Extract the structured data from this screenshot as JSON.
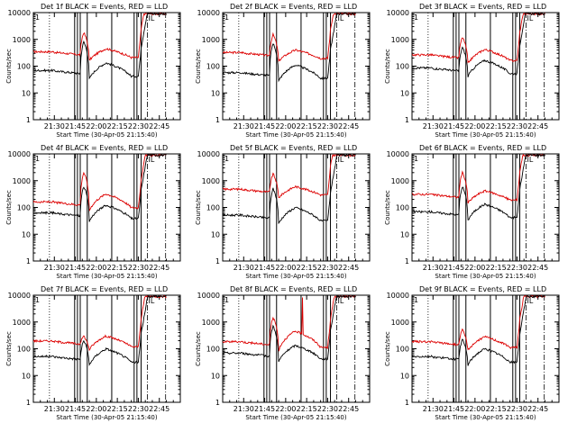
{
  "chart_data": {
    "type": "line",
    "layout": "3x3 grid of line panels",
    "x_tick_labels": [
      "21:30",
      "21:45",
      "22:00",
      "22:15",
      "22:30",
      "22:45"
    ],
    "x_tick_minutes": [
      15,
      30,
      45,
      60,
      75,
      90
    ],
    "xlim_minutes": [
      0,
      105
    ],
    "xlabel": "Start Time (30-Apr-05 21:15:40)",
    "ylabel": "Counts/sec",
    "yscale": "log",
    "ylim": [
      1,
      10000
    ],
    "y_tick_labels": [
      "1",
      "10",
      "100",
      "1000",
      "10000"
    ],
    "y_tick_values": [
      1,
      10,
      100,
      1000,
      10000
    ],
    "series_colors": {
      "events": "#000000",
      "lld": "#dd0000"
    },
    "legend_text": "BLACK = Events, RED = LLD",
    "corner_mark": "1",
    "marker_text": "IL",
    "vertical_lines": {
      "dotted_minutes": [
        11.5
      ],
      "solid_minutes": [
        29.5,
        31.5,
        33.5,
        38.5,
        56.0,
        72.0,
        74.0,
        77.0
      ],
      "dashdot_minutes": [
        81.5,
        94.5
      ]
    },
    "panels": [
      {
        "title": "Det 1f BLACK = Events, RED = LLD",
        "events_base": 60,
        "lld_base": 300,
        "events_spike": 800,
        "lld_spike": 1800,
        "lld_hump": 450,
        "extra_spike": false
      },
      {
        "title": "Det 2f BLACK = Events, RED = LLD",
        "events_base": 50,
        "lld_base": 280,
        "events_spike": 700,
        "lld_spike": 1500,
        "lld_hump": 400,
        "extra_spike": false
      },
      {
        "title": "Det 3f BLACK = Events, RED = LLD",
        "events_base": 75,
        "lld_base": 230,
        "events_spike": 500,
        "lld_spike": 1200,
        "lld_hump": 420,
        "extra_spike": false
      },
      {
        "title": "Det 4f BLACK = Events, RED = LLD",
        "events_base": 55,
        "lld_base": 140,
        "events_spike": 600,
        "lld_spike": 2000,
        "lld_hump": 320,
        "extra_spike": false
      },
      {
        "title": "Det 5f BLACK = Events, RED = LLD",
        "events_base": 45,
        "lld_base": 420,
        "events_spike": 500,
        "lld_spike": 1800,
        "lld_hump": 600,
        "extra_spike": false
      },
      {
        "title": "Det 6f BLACK = Events, RED = LLD",
        "events_base": 60,
        "lld_base": 270,
        "events_spike": 600,
        "lld_spike": 2000,
        "lld_hump": 420,
        "extra_spike": false
      },
      {
        "title": "Det 7f BLACK = Events, RED = LLD",
        "events_base": 45,
        "lld_base": 170,
        "events_spike": 200,
        "lld_spike": 300,
        "lld_hump": 300,
        "extra_spike": false
      },
      {
        "title": "Det 8f BLACK = Events, RED = LLD",
        "events_base": 60,
        "lld_base": 160,
        "events_spike": 700,
        "lld_spike": 1500,
        "lld_hump": 450,
        "extra_spike": true
      },
      {
        "title": "Det 9f BLACK = Events, RED = LLD",
        "events_base": 45,
        "lld_base": 160,
        "events_spike": 220,
        "lld_spike": 500,
        "lld_hump": 280,
        "extra_spike": false
      }
    ]
  }
}
